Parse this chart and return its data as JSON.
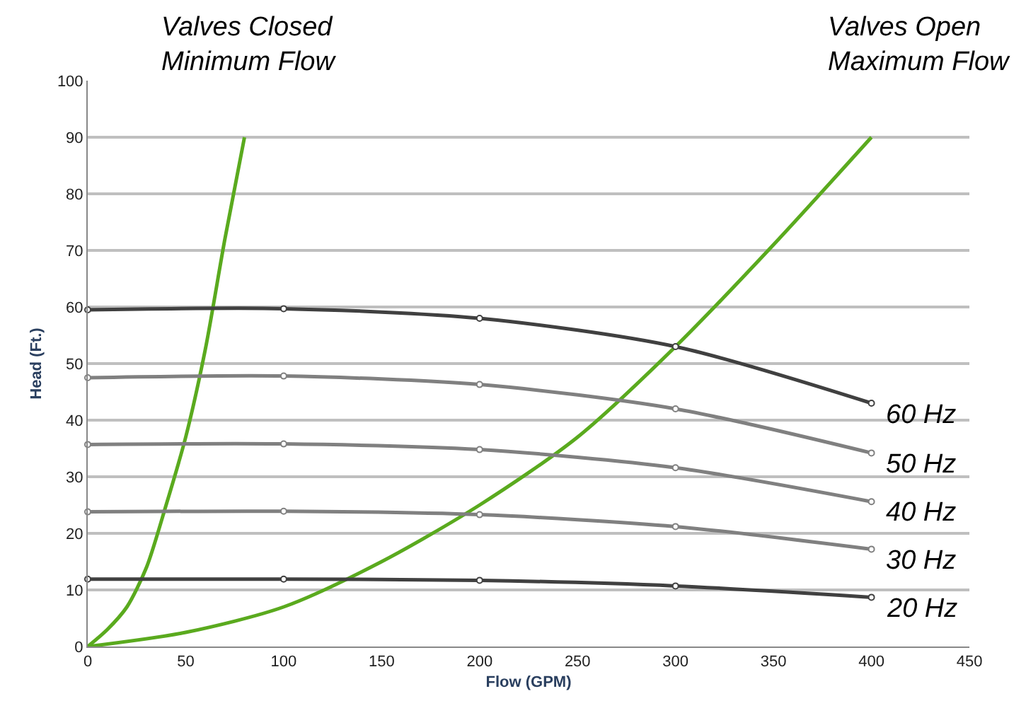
{
  "chart_data": {
    "type": "line",
    "xlabel": "Flow (GPM)",
    "ylabel": "Head (Ft.)",
    "annotations": [
      "Valves Closed\nMinimum Flow",
      "Valves Open\nMaximum Flow"
    ],
    "xlim": [
      0,
      450
    ],
    "xticks": [
      0,
      50,
      100,
      150,
      200,
      250,
      300,
      350,
      400,
      450
    ],
    "ylim": [
      0,
      100
    ],
    "yticks": [
      0,
      10,
      20,
      30,
      40,
      50,
      60,
      70,
      80,
      90,
      100
    ],
    "grid": "y",
    "legend": false,
    "line_style": "solid",
    "series": [
      {
        "name": "60 Hz",
        "color": "#404040",
        "marker": "circle",
        "x": [
          0,
          100,
          200,
          300,
          400
        ],
        "values": [
          59.5,
          59.7,
          58,
          53,
          43
        ]
      },
      {
        "name": "50 Hz",
        "color": "#808080",
        "marker": "circle",
        "x": [
          0,
          100,
          200,
          300,
          400
        ],
        "values": [
          47.5,
          47.8,
          46.3,
          42,
          34.2
        ]
      },
      {
        "name": "40 Hz",
        "color": "#808080",
        "marker": "circle",
        "x": [
          0,
          100,
          200,
          300,
          400
        ],
        "values": [
          35.7,
          35.8,
          34.8,
          31.6,
          25.6
        ]
      },
      {
        "name": "30 Hz",
        "color": "#808080",
        "marker": "circle",
        "x": [
          0,
          100,
          200,
          300,
          400
        ],
        "values": [
          23.8,
          23.9,
          23.3,
          21.2,
          17.2
        ]
      },
      {
        "name": "20 Hz",
        "color": "#404040",
        "marker": "circle",
        "x": [
          0,
          100,
          200,
          300,
          400
        ],
        "values": [
          11.9,
          11.9,
          11.7,
          10.7,
          8.7
        ]
      },
      {
        "color": "#5aaa1e",
        "marker": "none",
        "x": [
          0,
          10,
          20,
          30,
          40,
          50,
          60,
          70,
          80
        ],
        "values": [
          0,
          3,
          7,
          14,
          25,
          37,
          52.5,
          72,
          90
        ]
      },
      {
        "color": "#5aaa1e",
        "marker": "none",
        "x": [
          0,
          50,
          100,
          150,
          200,
          250,
          300,
          350,
          400
        ],
        "values": [
          0,
          2.5,
          7,
          15,
          25,
          37,
          53,
          71,
          90
        ]
      }
    ]
  }
}
